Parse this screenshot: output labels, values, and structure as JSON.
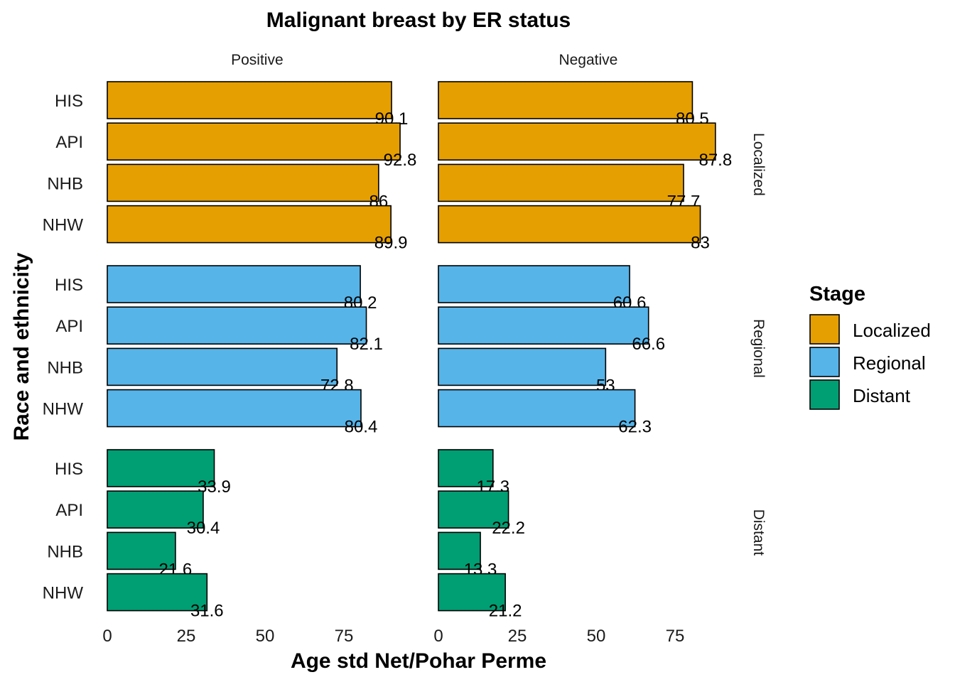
{
  "chart_data": {
    "type": "bar",
    "orientation": "horizontal",
    "title": "Malignant breast by ER status",
    "xlabel": "Age std Net/Pohar Perme",
    "ylabel": "Race and ethnicity",
    "xlim": [
      0,
      95
    ],
    "x_ticks": [
      "0",
      "25",
      "50",
      "75"
    ],
    "categories": [
      "HIS",
      "API",
      "NHB",
      "NHW"
    ],
    "column_facets": [
      "Positive",
      "Negative"
    ],
    "row_facets": [
      "Localized",
      "Regional",
      "Distant"
    ],
    "legend": {
      "title": "Stage",
      "position": "right",
      "items": [
        {
          "label": "Localized",
          "color": "#E69F00"
        },
        {
          "label": "Regional",
          "color": "#56B4E9"
        },
        {
          "label": "Distant",
          "color": "#009E73"
        }
      ]
    },
    "grid": false,
    "panels": [
      {
        "column": "Positive",
        "row": "Localized",
        "values": [
          90.1,
          92.8,
          86,
          89.9
        ],
        "labels": [
          "90.1",
          "92.8",
          "86",
          "89.9"
        ]
      },
      {
        "column": "Negative",
        "row": "Localized",
        "values": [
          80.5,
          87.8,
          77.7,
          83
        ],
        "labels": [
          "80.5",
          "87.8",
          "77.7",
          "83"
        ]
      },
      {
        "column": "Positive",
        "row": "Regional",
        "values": [
          80.2,
          82.1,
          72.8,
          80.4
        ],
        "labels": [
          "80.2",
          "82.1",
          "72.8",
          "80.4"
        ]
      },
      {
        "column": "Negative",
        "row": "Regional",
        "values": [
          60.6,
          66.6,
          53,
          62.3
        ],
        "labels": [
          "60.6",
          "66.6",
          "53",
          "62.3"
        ]
      },
      {
        "column": "Positive",
        "row": "Distant",
        "values": [
          33.9,
          30.4,
          21.6,
          31.6
        ],
        "labels": [
          "33.9",
          "30.4",
          "21.6",
          "31.6"
        ]
      },
      {
        "column": "Negative",
        "row": "Distant",
        "values": [
          17.3,
          22.2,
          13.3,
          21.2
        ],
        "labels": [
          "17.3",
          "22.2",
          "13.3",
          "21.2"
        ]
      }
    ]
  }
}
